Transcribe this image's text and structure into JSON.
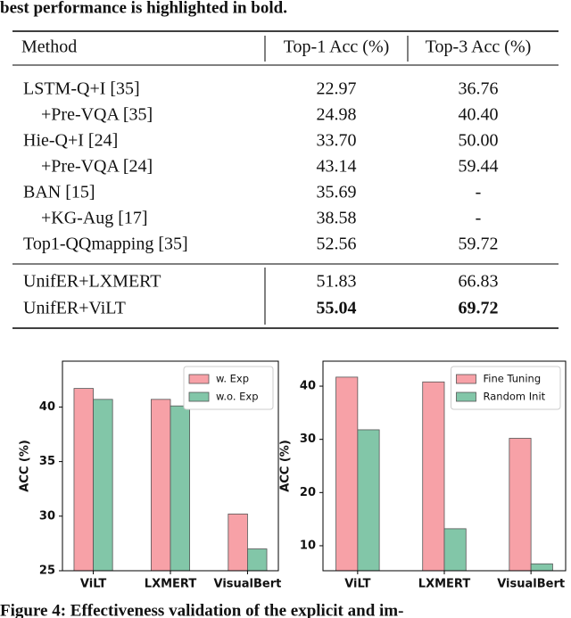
{
  "header_text": "best performance is highlighted in bold.",
  "table": {
    "header": [
      "Method",
      "Top-1 Acc (%)",
      "Top-3 Acc (%)"
    ],
    "groups": [
      [
        {
          "cells": [
            "LSTM-Q+I [35]",
            "22.97",
            "36.76"
          ]
        },
        {
          "cells": [
            "+Pre-VQA [35]",
            "24.98",
            "40.40"
          ],
          "indent": true
        },
        {
          "cells": [
            "Hie-Q+I [24]",
            "33.70",
            "50.00"
          ]
        },
        {
          "cells": [
            "+Pre-VQA [24]",
            "43.14",
            "59.44"
          ],
          "indent": true
        },
        {
          "cells": [
            "BAN [15]",
            "35.69",
            "-"
          ]
        },
        {
          "cells": [
            "+KG-Aug [17]",
            "38.58",
            "-"
          ],
          "indent": true
        },
        {
          "cells": [
            "Top1-QQmapping [35]",
            "52.56",
            "59.72"
          ]
        }
      ],
      [
        {
          "cells": [
            "UnifER+LXMERT",
            "51.83",
            "66.83"
          ]
        },
        {
          "cells": [
            "UnifER+ViLT",
            "55.04",
            "69.72"
          ],
          "bold": true
        }
      ]
    ]
  },
  "chart_data": [
    {
      "type": "bar",
      "y_label": "ACC (%)",
      "categories": [
        "ViLT",
        "LXMERT",
        "VisualBert"
      ],
      "series": [
        {
          "name": "w. Exp",
          "color": "#f7a1a7",
          "values": [
            41.7,
            40.7,
            30.2
          ]
        },
        {
          "name": "w.o. Exp",
          "color": "#82c6a8",
          "values": [
            40.7,
            40.1,
            27.0
          ]
        }
      ],
      "ylim": [
        25,
        44.2
      ],
      "yticks": [
        25,
        30,
        35,
        40
      ],
      "legend": "upper right"
    },
    {
      "type": "bar",
      "y_label": "ACC (%)",
      "categories": [
        "ViLT",
        "LXMERT",
        "VisualBert"
      ],
      "series": [
        {
          "name": "Fine Tuning",
          "color": "#f7a1a7",
          "values": [
            41.7,
            40.8,
            30.2
          ]
        },
        {
          "name": "Random Init",
          "color": "#82c6a8",
          "values": [
            31.8,
            13.2,
            6.6
          ]
        }
      ],
      "ylim": [
        5.3,
        44.7
      ],
      "yticks": [
        10,
        20,
        30,
        40
      ],
      "legend": "upper right"
    }
  ],
  "caption": "Figure 4: Effectiveness validation of the explicit and im-"
}
